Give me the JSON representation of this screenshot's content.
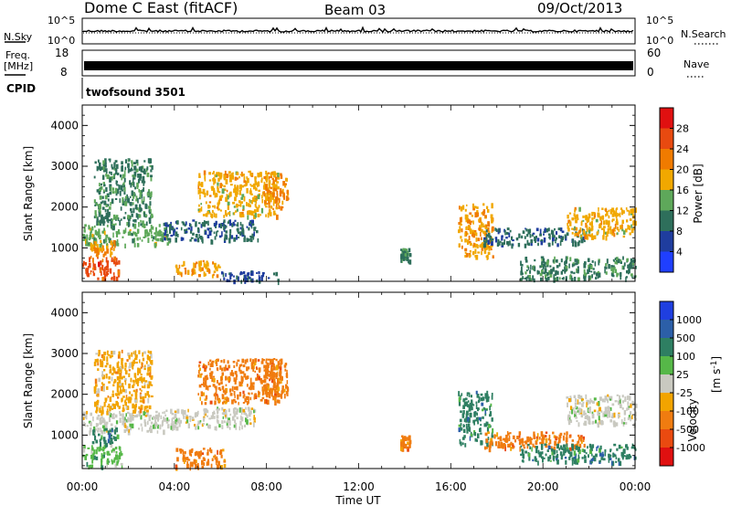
{
  "header": {
    "station": "Dome C East (fitACF)",
    "beam": "Beam 03",
    "date": "09/Oct/2013"
  },
  "aux_panels": {
    "nsky_label": "N.Sky",
    "nsky_ticks": [
      "10^5",
      "10^0"
    ],
    "nsearch_label": "N.Search",
    "nsearch_ticks": [
      "10^5",
      "10^0"
    ],
    "freq_label": "Freq.",
    "freq_unit": "[MHz]",
    "freq_ticks": [
      "18",
      "8"
    ],
    "nave_label": "Nave",
    "nave_ticks": [
      "60",
      "0"
    ],
    "cpid_label": "CPID",
    "cpid_value": "twofsound 3501"
  },
  "colors": {
    "power_scale": [
      "#1f3fff",
      "#1f3d9e",
      "#2e6f5b",
      "#5ea85a",
      "#f1a800",
      "#f07b00",
      "#e84a10",
      "#e01010"
    ],
    "velocity_scale": [
      "#1f3fe0",
      "#2c5fa8",
      "#2e7f62",
      "#56b848",
      "#c9c9c0",
      "#f2a400",
      "#f07c10",
      "#ea4a10",
      "#e01010"
    ]
  },
  "chart_data": [
    {
      "type": "heatmap",
      "panel": "power",
      "title": "",
      "xlabel": "",
      "ylabel": "Slant Range [km]",
      "x_ticks": [
        "00:00",
        "04:00",
        "08:00",
        "12:00",
        "16:00",
        "20:00",
        "00:00"
      ],
      "xlim_hours": [
        0,
        24
      ],
      "ylim_km": [
        180,
        4500
      ],
      "y_ticks": [
        1000,
        2000,
        3000,
        4000
      ],
      "colorbar": {
        "label": "Power [dB]",
        "range": [
          0,
          32
        ],
        "ticks": [
          4,
          8,
          12,
          16,
          20,
          24,
          28
        ]
      },
      "regions": [
        {
          "t0": 0.0,
          "t1": 1.6,
          "r0": 250,
          "r1": 800,
          "value": 26
        },
        {
          "t0": 0.0,
          "t1": 3.8,
          "r0": 1100,
          "r1": 1600,
          "value": 14
        },
        {
          "t0": 0.3,
          "t1": 1.4,
          "r0": 800,
          "r1": 1200,
          "value": 20
        },
        {
          "t0": 0.5,
          "t1": 3.0,
          "r0": 1600,
          "r1": 3200,
          "value": 11
        },
        {
          "t0": 4.0,
          "t1": 6.0,
          "r0": 350,
          "r1": 700,
          "value": 19
        },
        {
          "t0": 3.5,
          "t1": 7.6,
          "r0": 1200,
          "r1": 1700,
          "value": 9
        },
        {
          "t0": 5.0,
          "t1": 8.5,
          "r0": 1800,
          "r1": 2900,
          "value": 18
        },
        {
          "t0": 7.8,
          "t1": 8.9,
          "r0": 2000,
          "r1": 2900,
          "value": 21
        },
        {
          "t0": 6.0,
          "t1": 8.6,
          "r0": 200,
          "r1": 450,
          "value": 7
        },
        {
          "t0": 13.8,
          "t1": 14.2,
          "r0": 700,
          "r1": 1000,
          "value": 11
        },
        {
          "t0": 16.3,
          "t1": 17.8,
          "r0": 800,
          "r1": 2100,
          "value": 19
        },
        {
          "t0": 17.4,
          "t1": 21.8,
          "r0": 1100,
          "r1": 1500,
          "value": 9
        },
        {
          "t0": 21.0,
          "t1": 24.0,
          "r0": 1300,
          "r1": 2000,
          "value": 18
        },
        {
          "t0": 19.0,
          "t1": 24.0,
          "r0": 250,
          "r1": 800,
          "value": 11
        }
      ]
    },
    {
      "type": "heatmap",
      "panel": "velocity",
      "title": "",
      "xlabel": "Time UT",
      "ylabel": "Slant Range [km]",
      "x_ticks": [
        "00:00",
        "04:00",
        "08:00",
        "12:00",
        "16:00",
        "20:00",
        "00:00"
      ],
      "xlim_hours": [
        0,
        24
      ],
      "ylim_km": [
        180,
        4500
      ],
      "y_ticks": [
        1000,
        2000,
        3000,
        4000
      ],
      "colorbar": {
        "label": "Velocity",
        "unit_base": "[m s",
        "unit_exp": "-1",
        "unit_close": "]",
        "levels": [
          1000,
          500,
          100,
          25,
          -25,
          -100,
          -500,
          -1000
        ],
        "tick_labels": [
          "1000",
          "500",
          "100",
          "25",
          "-25",
          "-100",
          "-500",
          "-1000"
        ]
      },
      "regions": [
        {
          "t0": 0.0,
          "t1": 1.7,
          "r0": 250,
          "r1": 800,
          "value": 50
        },
        {
          "t0": 0.0,
          "t1": 3.6,
          "r0": 1100,
          "r1": 1600,
          "value": 0
        },
        {
          "t0": 0.4,
          "t1": 1.5,
          "r0": 800,
          "r1": 1200,
          "value": 300
        },
        {
          "t0": 0.5,
          "t1": 3.0,
          "r0": 1600,
          "r1": 3100,
          "value": -60
        },
        {
          "t0": 4.0,
          "t1": 6.2,
          "r0": 250,
          "r1": 700,
          "value": -150
        },
        {
          "t0": 5.0,
          "t1": 8.6,
          "r0": 1800,
          "r1": 2900,
          "value": -200
        },
        {
          "t0": 7.8,
          "t1": 8.9,
          "r0": 2000,
          "r1": 2900,
          "value": -250
        },
        {
          "t0": 3.5,
          "t1": 7.5,
          "r0": 1200,
          "r1": 1700,
          "value": 20
        },
        {
          "t0": 13.8,
          "t1": 14.2,
          "r0": 700,
          "r1": 1000,
          "value": -400
        },
        {
          "t0": 16.3,
          "t1": 17.8,
          "r0": 800,
          "r1": 2100,
          "value": 150
        },
        {
          "t0": 17.4,
          "t1": 21.8,
          "r0": 700,
          "r1": 1100,
          "value": -200
        },
        {
          "t0": 21.0,
          "t1": 24.0,
          "r0": 1300,
          "r1": 2000,
          "value": 10
        },
        {
          "t0": 19.0,
          "t1": 24.0,
          "r0": 350,
          "r1": 800,
          "value": 120
        }
      ]
    }
  ]
}
